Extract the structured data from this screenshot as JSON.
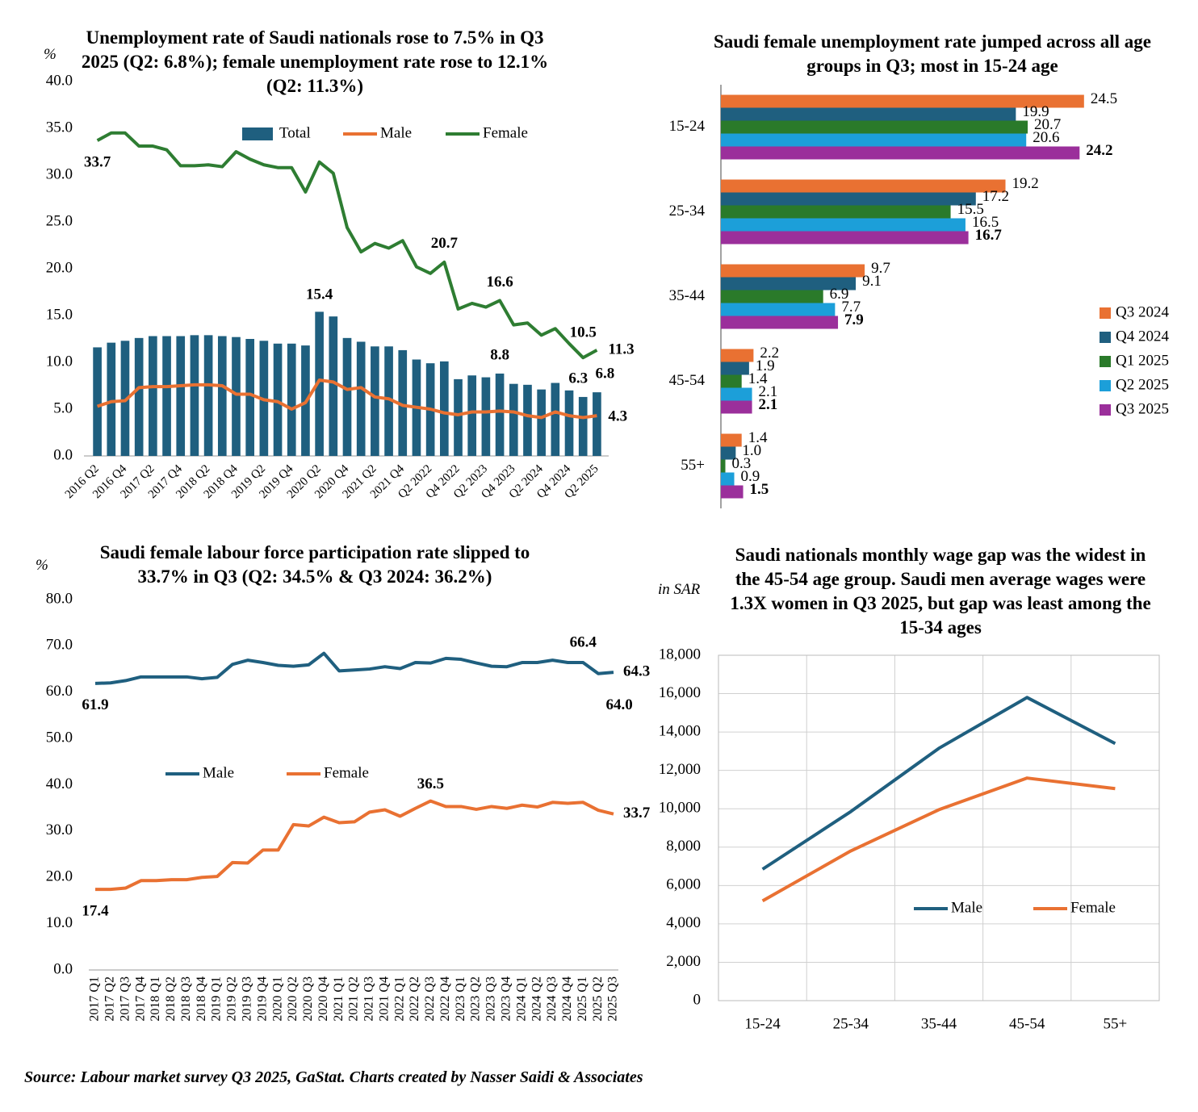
{
  "chart_data": [
    {
      "type": "combo",
      "title": "Unemployment rate of Saudi nationals rose to 7.5% in Q3 2025 (Q2: 6.8%); female unemployment rate rose to 12.1% (Q2: 11.3%)",
      "y_unit": "%",
      "categories": [
        "2016 Q2",
        null,
        "2016 Q4",
        null,
        "2017 Q2",
        null,
        "2017 Q4",
        null,
        "2018 Q2",
        null,
        "2018 Q4",
        null,
        "2019 Q2",
        null,
        "2019 Q4",
        null,
        "2020 Q2",
        null,
        "2020 Q4",
        null,
        "2021 Q2",
        null,
        "2021 Q4",
        null,
        "Q2 2022",
        null,
        "Q4 2022",
        null,
        "Q2 2023",
        null,
        "Q4 2023",
        null,
        "Q2 2024",
        null,
        "Q4 2024",
        null,
        "Q2 2025"
      ],
      "series": [
        {
          "name": "Total",
          "type": "bar",
          "color": "#1f5f7f",
          "values": [
            11.6,
            12.1,
            12.3,
            12.6,
            12.8,
            12.8,
            12.8,
            12.9,
            12.9,
            12.8,
            12.7,
            12.5,
            12.3,
            12.0,
            12.0,
            11.8,
            15.4,
            14.9,
            12.6,
            12.2,
            11.7,
            11.7,
            11.3,
            10.3,
            9.9,
            10.1,
            8.2,
            8.6,
            8.4,
            8.8,
            7.7,
            7.6,
            7.1,
            7.8,
            7.0,
            6.3,
            6.8
          ],
          "value_labels": [
            null,
            null,
            null,
            null,
            null,
            null,
            null,
            null,
            null,
            null,
            null,
            null,
            null,
            null,
            null,
            null,
            "15.4",
            null,
            null,
            null,
            null,
            null,
            null,
            null,
            null,
            null,
            null,
            null,
            null,
            "8.8",
            null,
            null,
            null,
            null,
            null,
            "6.3",
            "6.8"
          ]
        },
        {
          "name": "Male",
          "type": "line",
          "color": "#e97132",
          "values": [
            5.3,
            5.8,
            5.9,
            7.3,
            7.4,
            7.4,
            7.5,
            7.6,
            7.6,
            7.5,
            6.6,
            6.6,
            6.0,
            5.8,
            5.0,
            5.7,
            8.1,
            7.9,
            7.1,
            7.3,
            6.3,
            6.1,
            5.4,
            5.2,
            5.0,
            4.6,
            4.4,
            4.7,
            4.7,
            4.8,
            4.7,
            4.3,
            4.1,
            4.7,
            4.3,
            4.1,
            4.3
          ],
          "value_labels": [
            null,
            null,
            null,
            null,
            null,
            null,
            null,
            null,
            null,
            null,
            null,
            null,
            null,
            null,
            null,
            null,
            null,
            null,
            null,
            null,
            null,
            null,
            null,
            null,
            null,
            null,
            null,
            null,
            null,
            null,
            null,
            null,
            null,
            null,
            null,
            null,
            "4.3"
          ]
        },
        {
          "name": "Female",
          "type": "line",
          "color": "#2e7d32",
          "values": [
            33.7,
            34.5,
            34.5,
            33.1,
            33.1,
            32.7,
            31.0,
            31.0,
            31.1,
            30.9,
            32.5,
            31.7,
            31.1,
            30.8,
            30.8,
            28.2,
            31.4,
            30.2,
            24.4,
            21.8,
            22.7,
            22.2,
            23.0,
            20.2,
            19.5,
            20.7,
            15.7,
            16.3,
            15.9,
            16.6,
            14.0,
            14.2,
            12.9,
            13.6,
            12.0,
            10.5,
            11.3
          ],
          "value_labels": [
            "33.7",
            null,
            null,
            null,
            null,
            null,
            null,
            null,
            null,
            null,
            null,
            null,
            null,
            null,
            null,
            null,
            null,
            null,
            null,
            null,
            null,
            null,
            null,
            null,
            null,
            "20.7",
            null,
            null,
            null,
            "16.6",
            null,
            null,
            null,
            null,
            null,
            "10.5",
            "11.3"
          ]
        }
      ],
      "ylim": [
        0,
        40
      ],
      "yticks": [
        {
          "value": 0,
          "label": "0.0"
        },
        {
          "value": 5,
          "label": "5.0"
        },
        {
          "value": 10,
          "label": "10.0"
        },
        {
          "value": 15,
          "label": "15.0"
        },
        {
          "value": 20,
          "label": "20.0"
        },
        {
          "value": 25,
          "label": "25.0"
        },
        {
          "value": 30,
          "label": "30.0"
        },
        {
          "value": 35,
          "label": "35.0"
        },
        {
          "value": 40,
          "label": "40.0"
        }
      ],
      "grid": false,
      "legend": "top"
    },
    {
      "type": "hbar",
      "title": "Saudi female unemployment rate jumped across all age groups in Q3; most in 15-24 age",
      "categories": [
        "15-24",
        "25-34",
        "35-44",
        "45-54",
        "55+"
      ],
      "series": [
        {
          "name": "Q3 2024",
          "color": "#e97132",
          "values": [
            24.5,
            19.2,
            9.7,
            2.2,
            1.4
          ]
        },
        {
          "name": "Q4 2024",
          "color": "#1f5f7f",
          "values": [
            19.9,
            17.2,
            9.1,
            1.9,
            1.0
          ],
          "value_labels": [
            "19.9",
            "17.2",
            "9.1",
            "1.9",
            "1.0"
          ]
        },
        {
          "name": "Q1 2025",
          "color": "#2a7a2a",
          "values": [
            20.7,
            15.5,
            6.9,
            1.4,
            0.3
          ]
        },
        {
          "name": "Q2 2025",
          "color": "#1c9fd9",
          "values": [
            20.6,
            16.5,
            7.7,
            2.1,
            0.9
          ]
        },
        {
          "name": "Q3 2025",
          "color": "#9b2f9b",
          "values": [
            24.2,
            16.7,
            7.9,
            2.1,
            1.5
          ]
        }
      ],
      "xlim": [
        0,
        25
      ],
      "legend": "right"
    },
    {
      "type": "line",
      "title": "Saudi female labour force participation rate slipped to 33.7% in Q3 (Q2: 34.5% & Q3 2024: 36.2%)",
      "y_unit": "%",
      "categories": [
        "2017 Q1",
        "2017 Q2",
        "2017 Q3",
        "2017 Q4",
        "2018 Q1",
        "2018 Q2",
        "2018 Q3",
        "2018 Q4",
        "2019 Q1",
        "2019 Q2",
        "2019 Q3",
        "2019 Q4",
        "2020 Q1",
        "2020 Q2",
        "2020 Q3",
        "2020 Q4",
        "2021 Q1",
        "2021 Q2",
        "2021 Q3",
        "2021 Q4",
        "2022 Q1",
        "2022 Q2",
        "2022 Q3",
        "2022 Q4",
        "2023 Q1",
        "2023 Q2",
        "2023 Q3",
        "2023 Q4",
        "2024 Q1",
        "2024 Q2",
        "2024 Q3",
        "2024 Q4",
        "2025 Q1",
        "2025 Q2",
        "2025 Q3"
      ],
      "series": [
        {
          "name": "Male",
          "color": "#1f5f7f",
          "values": [
            61.9,
            62.0,
            62.5,
            63.3,
            63.3,
            63.3,
            63.3,
            62.9,
            63.2,
            66.0,
            66.9,
            66.4,
            65.8,
            65.6,
            65.9,
            68.4,
            64.6,
            64.8,
            65.0,
            65.5,
            65.1,
            66.4,
            66.3,
            67.3,
            67.1,
            66.3,
            65.6,
            65.5,
            66.4,
            66.4,
            66.9,
            66.4,
            66.4,
            64.0,
            64.3
          ],
          "value_labels": [
            "61.9",
            null,
            null,
            null,
            null,
            null,
            null,
            null,
            null,
            null,
            null,
            null,
            null,
            null,
            null,
            null,
            null,
            null,
            null,
            null,
            null,
            null,
            null,
            null,
            null,
            null,
            null,
            null,
            null,
            null,
            null,
            null,
            "66.4",
            "64.0",
            "64.3"
          ]
        },
        {
          "name": "Female",
          "color": "#e97132",
          "values": [
            17.4,
            17.4,
            17.7,
            19.3,
            19.3,
            19.5,
            19.5,
            20.0,
            20.2,
            23.2,
            23.1,
            25.9,
            25.9,
            31.4,
            31.1,
            33.0,
            31.8,
            32.0,
            34.1,
            34.6,
            33.2,
            34.9,
            36.5,
            35.3,
            35.3,
            34.7,
            35.3,
            34.9,
            35.6,
            35.2,
            36.2,
            36.0,
            36.2,
            34.5,
            33.7
          ],
          "value_labels": [
            "17.4",
            null,
            null,
            null,
            null,
            null,
            null,
            null,
            null,
            null,
            null,
            null,
            null,
            null,
            null,
            null,
            null,
            null,
            null,
            null,
            null,
            null,
            "36.5",
            null,
            null,
            null,
            null,
            null,
            null,
            null,
            null,
            null,
            null,
            null,
            "33.7"
          ]
        }
      ],
      "ylim": [
        0,
        80
      ],
      "yticks": [
        {
          "value": 0,
          "label": "0.0"
        },
        {
          "value": 10,
          "label": "10.0"
        },
        {
          "value": 20,
          "label": "20.0"
        },
        {
          "value": 30,
          "label": "30.0"
        },
        {
          "value": 40,
          "label": "40.0"
        },
        {
          "value": 50,
          "label": "50.0"
        },
        {
          "value": 60,
          "label": "60.0"
        },
        {
          "value": 70,
          "label": "70.0"
        },
        {
          "value": 80,
          "label": "80.0"
        }
      ],
      "grid": false,
      "legend": "center"
    },
    {
      "type": "line",
      "title": "Saudi nationals monthly wage gap was the widest in the 45-54 age group. Saudi men average wages were 1.3X women in Q3 2025, but gap was least among the 15-34 ages",
      "y_unit": "in SAR",
      "categories": [
        "15-24",
        "25-34",
        "35-44",
        "45-54",
        "55+"
      ],
      "series": [
        {
          "name": "Male",
          "color": "#1f5f7f",
          "values": [
            6850,
            9850,
            13150,
            15800,
            13400
          ]
        },
        {
          "name": "Female",
          "color": "#e97132",
          "values": [
            5200,
            7800,
            9950,
            11600,
            11050
          ]
        }
      ],
      "ylim": [
        0,
        18000
      ],
      "yticks": [
        0,
        {
          "value": 2000,
          "label": "2,000"
        },
        {
          "value": 4000,
          "label": "4,000"
        },
        {
          "value": 6000,
          "label": "6,000"
        },
        {
          "value": 8000,
          "label": "8,000"
        },
        {
          "value": 10000,
          "label": "10,000"
        },
        {
          "value": 12000,
          "label": "12,000"
        },
        {
          "value": 14000,
          "label": "14,000"
        },
        {
          "value": 16000,
          "label": "16,000"
        },
        {
          "value": 18000,
          "label": "18,000"
        }
      ],
      "grid": true,
      "legend": "center"
    }
  ],
  "source": "Source: Labour market survey Q3 2025, GaStat. Charts created by Nasser Saidi & Associates"
}
